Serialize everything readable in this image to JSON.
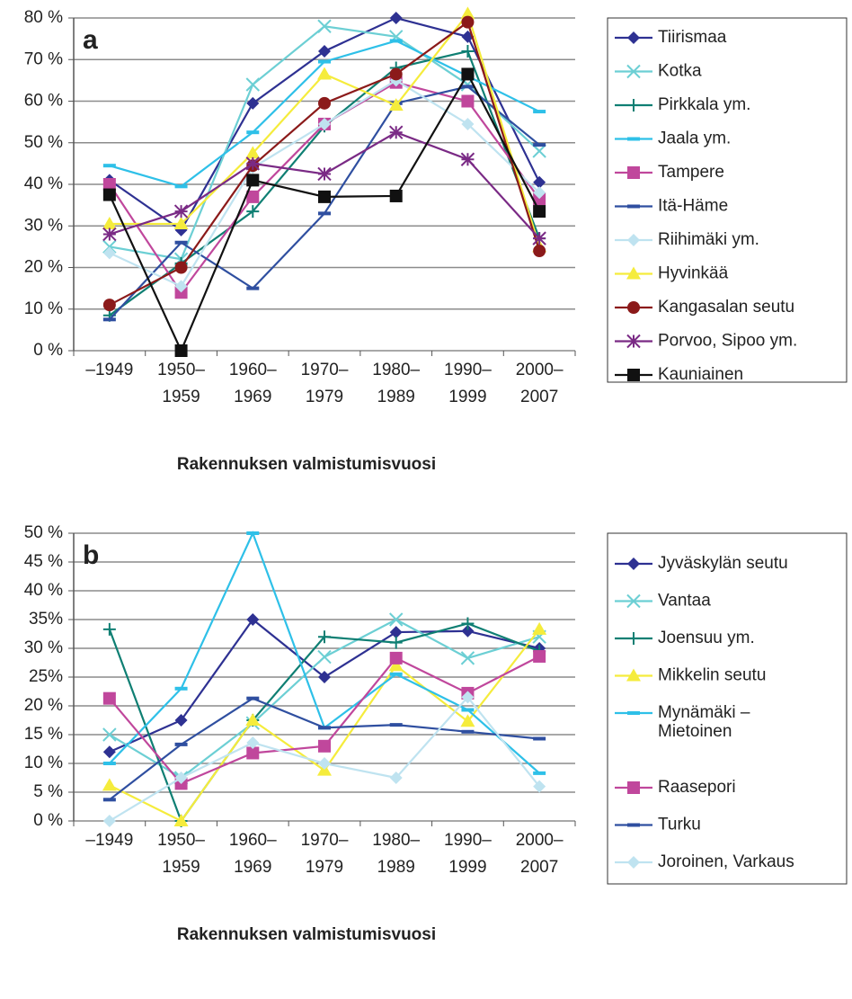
{
  "chart_data": [
    {
      "type": "line",
      "label": "a",
      "x_label": "Rakennuksen valmistumisvuosi",
      "categories": [
        "–1949",
        "1950–\n1959",
        "1960–\n1969",
        "1970–\n1979",
        "1980–\n1989",
        "1990–\n1999",
        "2000–\n2007"
      ],
      "ylim": [
        0,
        80
      ],
      "yticks": [
        {
          "value": 0,
          "label": "0 %"
        },
        {
          "value": 10,
          "label": "10 %"
        },
        {
          "value": 20,
          "label": "20 %"
        },
        {
          "value": 30,
          "label": "30 %"
        },
        {
          "value": 40,
          "label": "40 %"
        },
        {
          "value": 50,
          "label": "50 %"
        },
        {
          "value": 60,
          "label": "60 %"
        },
        {
          "value": 70,
          "label": "70 %"
        },
        {
          "value": 80,
          "label": "80 %"
        }
      ],
      "grid": true,
      "legend": "right",
      "series": [
        {
          "name": "Tiirismaa",
          "color": "#2e3192",
          "marker": "diamond",
          "values": [
            41,
            29,
            59.5,
            72,
            80,
            75.5,
            40.5
          ]
        },
        {
          "name": "Kotka",
          "color": "#6ccfd4",
          "marker": "x",
          "values": [
            25,
            22,
            64,
            78,
            75.5,
            64,
            48
          ]
        },
        {
          "name": "Pirkkala ym.",
          "color": "#0f7f73",
          "marker": "plus",
          "values": [
            8.5,
            21,
            33.5,
            54,
            68,
            72,
            27
          ]
        },
        {
          "name": "Jaala ym.",
          "color": "#2ec0e8",
          "marker": "dash",
          "values": [
            44.5,
            39.5,
            52.5,
            69.5,
            74.5,
            66,
            57.5
          ]
        },
        {
          "name": "Tampere",
          "color": "#c0479c",
          "marker": "square",
          "values": [
            40,
            14,
            37,
            54.5,
            64.5,
            60,
            36.5
          ]
        },
        {
          "name": "Itä-Häme",
          "color": "#2f4fa0",
          "marker": "dash",
          "values": [
            7.5,
            26,
            15,
            33,
            59.5,
            63.5,
            49.5
          ]
        },
        {
          "name": "Riihimäki ym.",
          "color": "#bfe3f0",
          "marker": "diamond",
          "values": [
            23.5,
            15.5,
            44,
            54.5,
            65,
            54.5,
            38
          ]
        },
        {
          "name": "Hyvinkää",
          "color": "#f5ec3c",
          "marker": "triangle",
          "values": [
            30.5,
            30.5,
            47.5,
            66.5,
            59,
            81,
            25
          ]
        },
        {
          "name": "Kangasalan seutu",
          "color": "#8b1a1a",
          "marker": "circle",
          "values": [
            11,
            20,
            44.5,
            59.5,
            66.5,
            79,
            24
          ]
        },
        {
          "name": "Porvoo, Sipoo ym.",
          "color": "#7a2a85",
          "marker": "star",
          "values": [
            28,
            33.5,
            45,
            42.5,
            52.5,
            46,
            27
          ]
        },
        {
          "name": "Kauniainen",
          "color": "#111111",
          "marker": "square",
          "values": [
            37.5,
            0,
            41,
            37,
            37.2,
            66.5,
            33.5
          ]
        }
      ]
    },
    {
      "type": "line",
      "label": "b",
      "x_label": "Rakennuksen valmistumisvuosi",
      "categories": [
        "–1949",
        "1950–\n1959",
        "1960–\n1969",
        "1970–\n1979",
        "1980–\n1989",
        "1990–\n1999",
        "2000–\n2007"
      ],
      "ylim": [
        0,
        50
      ],
      "yticks": [
        {
          "value": 0,
          "label": "0 %"
        },
        {
          "value": 5,
          "label": "5 %"
        },
        {
          "value": 10,
          "label": "10 %"
        },
        {
          "value": 15,
          "label": "15 %"
        },
        {
          "value": 20,
          "label": "20 %"
        },
        {
          "value": 25,
          "label": "25%"
        },
        {
          "value": 30,
          "label": "30 %"
        },
        {
          "value": 35,
          "label": "35%"
        },
        {
          "value": 40,
          "label": "40 %"
        },
        {
          "value": 45,
          "label": "45 %"
        },
        {
          "value": 50,
          "label": "50 %"
        }
      ],
      "grid": true,
      "legend": "right",
      "series": [
        {
          "name": "Jyväskylän seutu",
          "color": "#2e3192",
          "marker": "diamond",
          "values": [
            12,
            17.5,
            35,
            25,
            32.8,
            33,
            30
          ]
        },
        {
          "name": "Vantaa",
          "color": "#6ccfd4",
          "marker": "x",
          "values": [
            15,
            7.5,
            17,
            28.5,
            35,
            28.3,
            32
          ]
        },
        {
          "name": "Joensuu ym.",
          "color": "#0f7f73",
          "marker": "plus",
          "values": [
            33.3,
            0,
            17.5,
            32,
            31,
            34.3,
            29.5
          ]
        },
        {
          "name": "Mikkelin seutu",
          "color": "#f5ec3c",
          "marker": "triangle",
          "values": [
            6.2,
            0,
            17.5,
            8.8,
            27,
            17.3,
            33.3
          ]
        },
        {
          "name": "Mynämäki –\nMietoinen",
          "color": "#2ec0e8",
          "marker": "dash",
          "values": [
            10,
            23,
            50,
            16.2,
            25.5,
            19.3,
            8.3
          ]
        },
        {
          "name": "Raasepori",
          "color": "#c0479c",
          "marker": "square",
          "values": [
            21.3,
            6.5,
            11.8,
            13,
            28.3,
            22.2,
            28.6
          ]
        },
        {
          "name": "Turku",
          "color": "#2f4fa0",
          "marker": "dash",
          "values": [
            3.7,
            13.3,
            21.3,
            16.2,
            16.7,
            15.5,
            14.3
          ]
        },
        {
          "name": "Joroinen, Varkaus",
          "color": "#bfe3f0",
          "marker": "diamond",
          "values": [
            0,
            7.5,
            13.6,
            10,
            7.5,
            21.5,
            6
          ]
        }
      ]
    }
  ]
}
